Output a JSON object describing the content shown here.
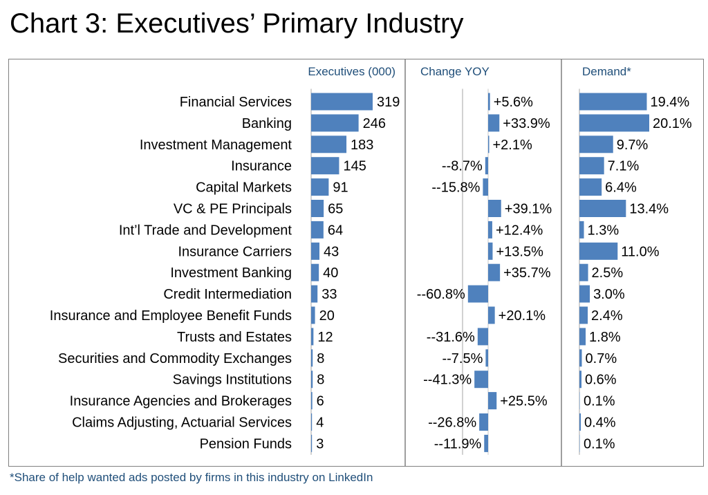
{
  "title": "Chart 3: Executives’ Primary Industry",
  "footnote": "*Share of help wanted ads posted by firms in this industry on LinkedIn",
  "colors": {
    "bar": "#4f81bd",
    "header": "#1f4e79",
    "divider": "#7f7f7f"
  },
  "chart_data": {
    "type": "bar",
    "categories": [
      "Financial Services",
      "Banking",
      "Investment Management",
      "Insurance",
      "Capital Markets",
      "VC & PE Principals",
      "Int’l Trade and Development",
      "Insurance Carriers",
      "Investment Banking",
      "Credit Intermediation",
      "Insurance and Employee Benefit Funds",
      "Trusts and Estates",
      "Securities and Commodity Exchanges",
      "Savings Institutions",
      "Insurance Agencies and Brokerages",
      "Claims Adjusting, Actuarial Services",
      "Pension Funds"
    ],
    "series": [
      {
        "name": "Executives (000)",
        "values": [
          319,
          246,
          183,
          145,
          91,
          65,
          64,
          43,
          40,
          33,
          20,
          12,
          8,
          8,
          6,
          4,
          3
        ],
        "labels": [
          "319",
          "246",
          "183",
          "145",
          "91",
          "65",
          "64",
          "43",
          "40",
          "33",
          "20",
          "12",
          "8",
          "8",
          "6",
          "4",
          "3"
        ]
      },
      {
        "name": "Change YOY",
        "values": [
          5.6,
          33.9,
          2.1,
          -8.7,
          -15.8,
          39.1,
          12.4,
          13.5,
          35.7,
          -60.8,
          20.1,
          -31.6,
          -7.5,
          -41.3,
          25.5,
          -26.8,
          -11.9
        ],
        "labels": [
          "+5.6%",
          "+33.9%",
          "+2.1%",
          "--8.7%",
          "--15.8%",
          "+39.1%",
          "+12.4%",
          "+13.5%",
          "+35.7%",
          "--60.8%",
          "+20.1%",
          "--31.6%",
          "--7.5%",
          "--41.3%",
          "+25.5%",
          "--26.8%",
          "--11.9%"
        ]
      },
      {
        "name": "Demand*",
        "values": [
          19.4,
          20.1,
          9.7,
          7.1,
          6.4,
          13.4,
          1.3,
          11.0,
          2.5,
          3.0,
          2.4,
          1.8,
          0.7,
          0.6,
          0.1,
          0.4,
          0.1
        ],
        "labels": [
          "19.4%",
          "20.1%",
          "9.7%",
          "7.1%",
          "6.4%",
          "13.4%",
          "1.3%",
          "11.0%",
          "2.5%",
          "3.0%",
          "2.4%",
          "1.8%",
          "0.7%",
          "0.6%",
          "0.1%",
          "0.4%",
          "0.1%"
        ]
      }
    ]
  }
}
